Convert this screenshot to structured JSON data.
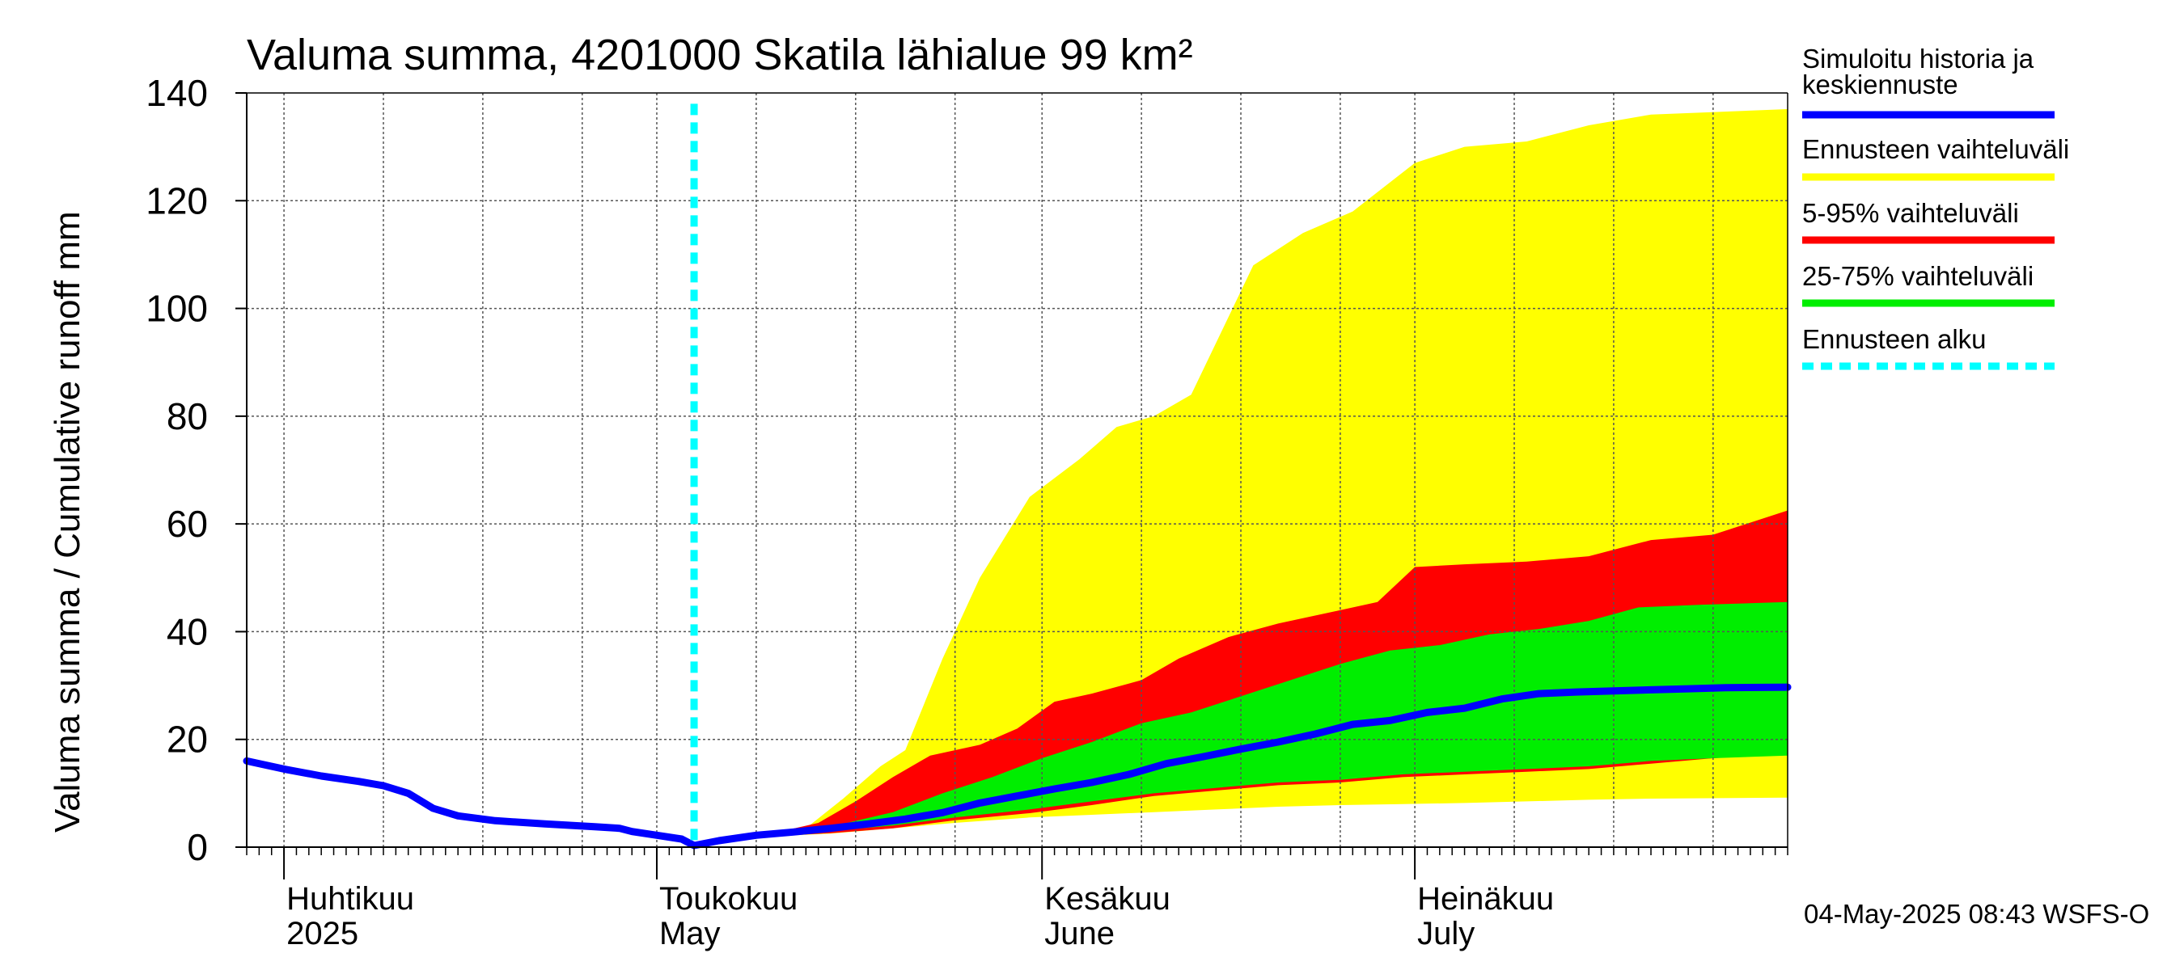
{
  "chart_data": {
    "type": "area",
    "title": "Valuma summa, 4201000 Skatila lähialue 99 km²",
    "ylabel": "Valuma summa / Cumulative runoff    mm",
    "xlabel": "",
    "ylim": [
      0,
      140
    ],
    "y_ticks": [
      "0",
      "20",
      "40",
      "60",
      "80",
      "100",
      "120",
      "140"
    ],
    "x_range": [
      "2025-03-29",
      "2025-07-31"
    ],
    "grid": true,
    "legend_position": "right",
    "month_labels": [
      {
        "fi": "Huhtikuu",
        "en": "2025",
        "date": "2025-04-01"
      },
      {
        "fi": "Toukokuu",
        "en": "May",
        "date": "2025-05-01"
      },
      {
        "fi": "Kesäkuu",
        "en": "June",
        "date": "2025-06-01"
      },
      {
        "fi": "Heinäkuu",
        "en": "July",
        "date": "2025-07-01"
      }
    ],
    "forecast_start": "2025-05-04",
    "series": [
      {
        "name": "Simuloitu historia ja keskiennuste",
        "color": "#0000ff",
        "points": [
          [
            "2025-03-29",
            16
          ],
          [
            "2025-04-01",
            14.5
          ],
          [
            "2025-04-04",
            13.2
          ],
          [
            "2025-04-07",
            12.2
          ],
          [
            "2025-04-09",
            11.4
          ],
          [
            "2025-04-11",
            10
          ],
          [
            "2025-04-13",
            7.2
          ],
          [
            "2025-04-15",
            5.8
          ],
          [
            "2025-04-18",
            4.9
          ],
          [
            "2025-04-22",
            4.3
          ],
          [
            "2025-04-26",
            3.8
          ],
          [
            "2025-04-28",
            3.5
          ],
          [
            "2025-04-29",
            2.9
          ],
          [
            "2025-05-01",
            2.2
          ],
          [
            "2025-05-03",
            1.5
          ],
          [
            "2025-05-04",
            0.3
          ],
          [
            "2025-05-06",
            1.2
          ],
          [
            "2025-05-09",
            2.2
          ],
          [
            "2025-05-12",
            2.8
          ],
          [
            "2025-05-15",
            3.5
          ],
          [
            "2025-05-18",
            4.3
          ],
          [
            "2025-05-21",
            5.2
          ],
          [
            "2025-05-24",
            6.4
          ],
          [
            "2025-05-27",
            8.2
          ],
          [
            "2025-05-30",
            9.5
          ],
          [
            "2025-06-02",
            10.8
          ],
          [
            "2025-06-05",
            12.0
          ],
          [
            "2025-06-08",
            13.5
          ],
          [
            "2025-06-11",
            15.5
          ],
          [
            "2025-06-14",
            16.8
          ],
          [
            "2025-06-17",
            18.2
          ],
          [
            "2025-06-20",
            19.5
          ],
          [
            "2025-06-23",
            21.0
          ],
          [
            "2025-06-26",
            22.8
          ],
          [
            "2025-06-29",
            23.5
          ],
          [
            "2025-07-02",
            25.0
          ],
          [
            "2025-07-05",
            25.8
          ],
          [
            "2025-07-08",
            27.5
          ],
          [
            "2025-07-11",
            28.5
          ],
          [
            "2025-07-14",
            28.8
          ],
          [
            "2025-07-17",
            29.0
          ],
          [
            "2025-07-20",
            29.2
          ],
          [
            "2025-07-23",
            29.4
          ],
          [
            "2025-07-26",
            29.6
          ],
          [
            "2025-07-31",
            29.7
          ]
        ]
      }
    ],
    "bands": [
      {
        "name": "Ennusteen vaihteluväli",
        "color": "#ffff00",
        "upper": [
          [
            "2025-05-04",
            0.3
          ],
          [
            "2025-05-10",
            2.2
          ],
          [
            "2025-05-13",
            3.5
          ],
          [
            "2025-05-16",
            9
          ],
          [
            "2025-05-19",
            15
          ],
          [
            "2025-05-21",
            18
          ],
          [
            "2025-05-24",
            35
          ],
          [
            "2025-05-27",
            50
          ],
          [
            "2025-05-31",
            65
          ],
          [
            "2025-06-04",
            72
          ],
          [
            "2025-06-07",
            78
          ],
          [
            "2025-06-10",
            80
          ],
          [
            "2025-06-13",
            84
          ],
          [
            "2025-06-18",
            108
          ],
          [
            "2025-06-22",
            114
          ],
          [
            "2025-06-26",
            118
          ],
          [
            "2025-07-01",
            127
          ],
          [
            "2025-07-05",
            130
          ],
          [
            "2025-07-10",
            131
          ],
          [
            "2025-07-15",
            134
          ],
          [
            "2025-07-20",
            136
          ],
          [
            "2025-07-31",
            137
          ]
        ],
        "lower": [
          [
            "2025-05-04",
            0.3
          ],
          [
            "2025-05-10",
            2.0
          ],
          [
            "2025-05-15",
            2.5
          ],
          [
            "2025-05-20",
            3.5
          ],
          [
            "2025-05-25",
            4.5
          ],
          [
            "2025-05-31",
            5.5
          ],
          [
            "2025-06-05",
            6.0
          ],
          [
            "2025-06-10",
            6.5
          ],
          [
            "2025-06-15",
            7.0
          ],
          [
            "2025-06-20",
            7.5
          ],
          [
            "2025-06-25",
            7.8
          ],
          [
            "2025-06-30",
            8.0
          ],
          [
            "2025-07-05",
            8.2
          ],
          [
            "2025-07-10",
            8.5
          ],
          [
            "2025-07-15",
            8.8
          ],
          [
            "2025-07-20",
            9.0
          ],
          [
            "2025-07-31",
            9.2
          ]
        ]
      },
      {
        "name": "5-95% vaihteluväli",
        "color": "#ff0000",
        "upper": [
          [
            "2025-05-04",
            0.3
          ],
          [
            "2025-05-10",
            2.4
          ],
          [
            "2025-05-14",
            4.5
          ],
          [
            "2025-05-17",
            8.5
          ],
          [
            "2025-05-20",
            13
          ],
          [
            "2025-05-23",
            17
          ],
          [
            "2025-05-27",
            19
          ],
          [
            "2025-05-30",
            22
          ],
          [
            "2025-06-02",
            27
          ],
          [
            "2025-06-05",
            28.5
          ],
          [
            "2025-06-09",
            31
          ],
          [
            "2025-06-12",
            35
          ],
          [
            "2025-06-16",
            39
          ],
          [
            "2025-06-20",
            41.5
          ],
          [
            "2025-06-24",
            43.5
          ],
          [
            "2025-06-28",
            45.5
          ],
          [
            "2025-07-01",
            52
          ],
          [
            "2025-07-05",
            52.5
          ],
          [
            "2025-07-10",
            53
          ],
          [
            "2025-07-15",
            54
          ],
          [
            "2025-07-20",
            57
          ],
          [
            "2025-07-25",
            58
          ],
          [
            "2025-07-31",
            62.5
          ]
        ],
        "lower": [
          [
            "2025-05-04",
            0.3
          ],
          [
            "2025-05-10",
            2.0
          ],
          [
            "2025-05-15",
            2.6
          ],
          [
            "2025-05-20",
            3.5
          ],
          [
            "2025-05-25",
            5.0
          ],
          [
            "2025-05-31",
            6.3
          ],
          [
            "2025-06-05",
            7.8
          ],
          [
            "2025-06-10",
            9.5
          ],
          [
            "2025-06-15",
            10.5
          ],
          [
            "2025-06-20",
            11.5
          ],
          [
            "2025-06-25",
            12.0
          ],
          [
            "2025-06-30",
            13.0
          ],
          [
            "2025-07-05",
            13.5
          ],
          [
            "2025-07-10",
            14.0
          ],
          [
            "2025-07-15",
            14.5
          ],
          [
            "2025-07-20",
            15.5
          ],
          [
            "2025-07-25",
            16.5
          ],
          [
            "2025-07-31",
            17.5
          ]
        ]
      },
      {
        "name": "25-75% vaihteluväli",
        "color": "#00ee00",
        "upper": [
          [
            "2025-05-04",
            0.3
          ],
          [
            "2025-05-10",
            2.2
          ],
          [
            "2025-05-15",
            3.8
          ],
          [
            "2025-05-20",
            6.5
          ],
          [
            "2025-05-24",
            10
          ],
          [
            "2025-05-28",
            13
          ],
          [
            "2025-06-01",
            16.5
          ],
          [
            "2025-06-05",
            19.5
          ],
          [
            "2025-06-09",
            23
          ],
          [
            "2025-06-13",
            25
          ],
          [
            "2025-06-17",
            28
          ],
          [
            "2025-06-21",
            31
          ],
          [
            "2025-06-25",
            34
          ],
          [
            "2025-06-29",
            36.5
          ],
          [
            "2025-07-03",
            37.5
          ],
          [
            "2025-07-07",
            39.5
          ],
          [
            "2025-07-11",
            40.5
          ],
          [
            "2025-07-15",
            42
          ],
          [
            "2025-07-19",
            44.5
          ],
          [
            "2025-07-24",
            45
          ],
          [
            "2025-07-31",
            45.5
          ]
        ],
        "lower": [
          [
            "2025-05-04",
            0.3
          ],
          [
            "2025-05-10",
            2.1
          ],
          [
            "2025-05-15",
            3.0
          ],
          [
            "2025-05-20",
            4.0
          ],
          [
            "2025-05-25",
            5.5
          ],
          [
            "2025-05-31",
            7.0
          ],
          [
            "2025-06-05",
            8.5
          ],
          [
            "2025-06-10",
            10.0
          ],
          [
            "2025-06-15",
            11.0
          ],
          [
            "2025-06-20",
            12.0
          ],
          [
            "2025-06-25",
            12.5
          ],
          [
            "2025-06-30",
            13.5
          ],
          [
            "2025-07-05",
            14.0
          ],
          [
            "2025-07-10",
            14.5
          ],
          [
            "2025-07-15",
            15.0
          ],
          [
            "2025-07-20",
            16.0
          ],
          [
            "2025-07-25",
            16.5
          ],
          [
            "2025-07-31",
            17.0
          ]
        ]
      }
    ],
    "legend": [
      {
        "label": "Simuloitu historia ja keskiennuste",
        "color": "#0000ff",
        "style": "solid"
      },
      {
        "label": "Ennusteen vaihteluväli",
        "color": "#ffff00",
        "style": "solid"
      },
      {
        "label": "5-95% vaihteluväli",
        "color": "#ff0000",
        "style": "solid"
      },
      {
        "label": "25-75% vaihteluväli",
        "color": "#00ee00",
        "style": "solid"
      },
      {
        "label": "Ennusteen alku",
        "color": "#00ffff",
        "style": "dashed"
      }
    ]
  },
  "legend_lines": {
    "simulated": [
      "Simuloitu historia ja",
      "keskiennuste"
    ]
  },
  "footer": "04-May-2025 08:43 WSFS-O"
}
